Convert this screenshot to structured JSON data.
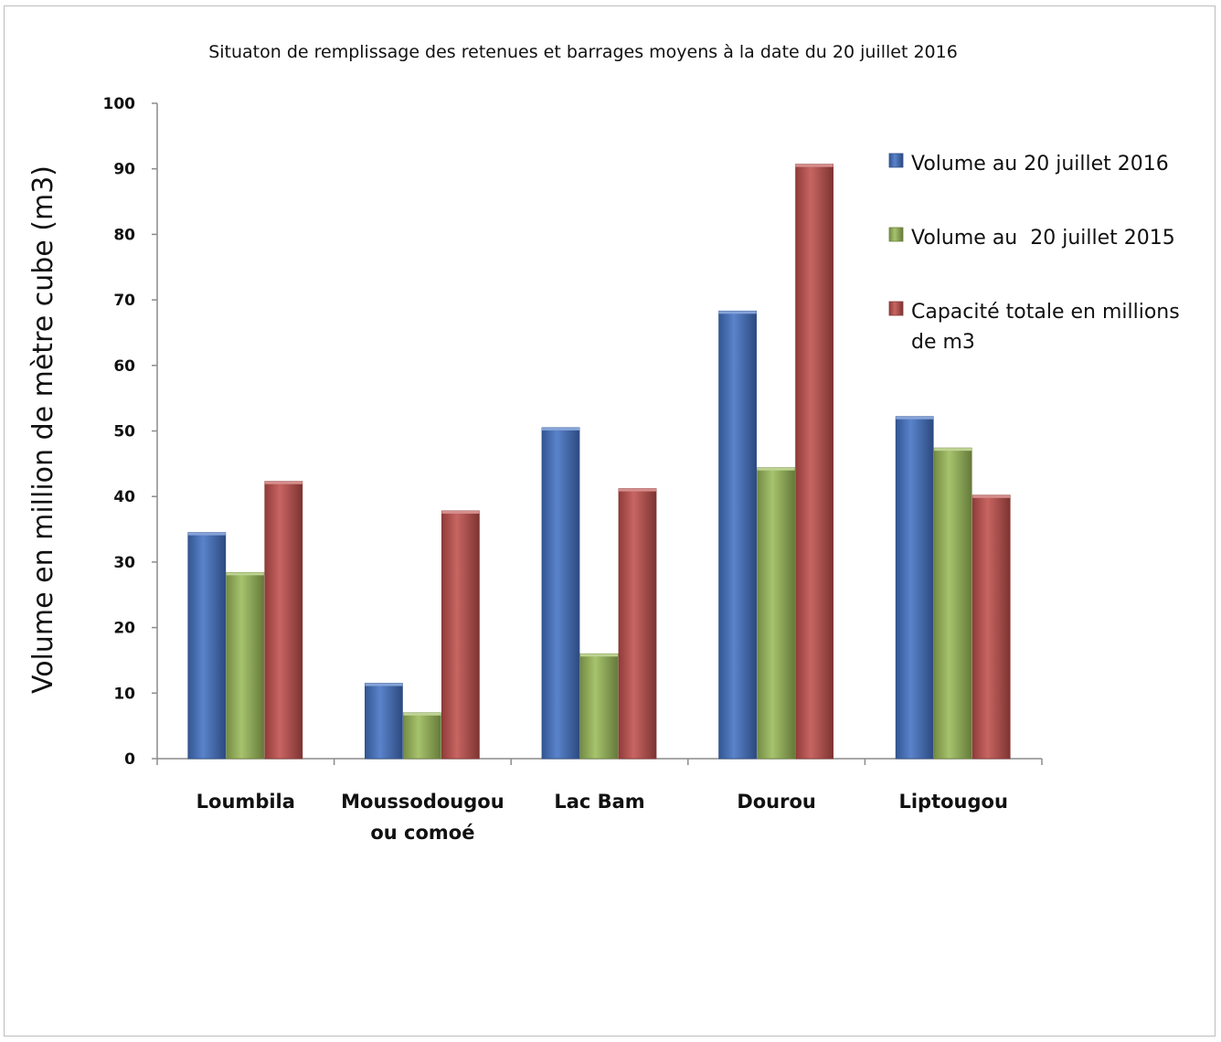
{
  "chart_data": {
    "type": "bar",
    "title": "Situaton de remplissage des retenues et barrages moyens à la date du 20 juillet 2016",
    "xlabel": "",
    "ylabel": "Volume en million de mètre cube (m3)",
    "ylim": [
      0,
      100
    ],
    "yticks": [
      0,
      10,
      20,
      30,
      40,
      50,
      60,
      70,
      80,
      90,
      100
    ],
    "categories": [
      "Loumbila",
      "Moussodougou ou comoé",
      "Lac Bam",
      "Dourou",
      "Liptougou"
    ],
    "category_lines": [
      [
        "Loumbila"
      ],
      [
        "Moussodougou",
        "ou comoé"
      ],
      [
        "Lac Bam"
      ],
      [
        "Dourou"
      ],
      [
        "Liptougou"
      ]
    ],
    "series": [
      {
        "name": "Volume au 20 juillet 2016",
        "color": "#4472c4",
        "values": [
          34.5,
          11.5,
          50.5,
          68.3,
          52.2
        ]
      },
      {
        "name": "Volume au  20 juillet 2015",
        "color": "#9bbb59",
        "values": [
          28.4,
          7.0,
          16.0,
          44.4,
          47.4
        ]
      },
      {
        "name": "Capacité totale en millions de m3",
        "color": "#c0504d",
        "values": [
          42.3,
          37.8,
          41.2,
          90.7,
          40.2
        ]
      }
    ],
    "legend": {
      "position": "right",
      "entries": [
        [
          "Volume au 20 juillet 2016"
        ],
        [
          "Volume au  20 juillet 2015"
        ],
        [
          "Capacité totale en millions",
          "de m3"
        ]
      ]
    },
    "grid": false
  }
}
